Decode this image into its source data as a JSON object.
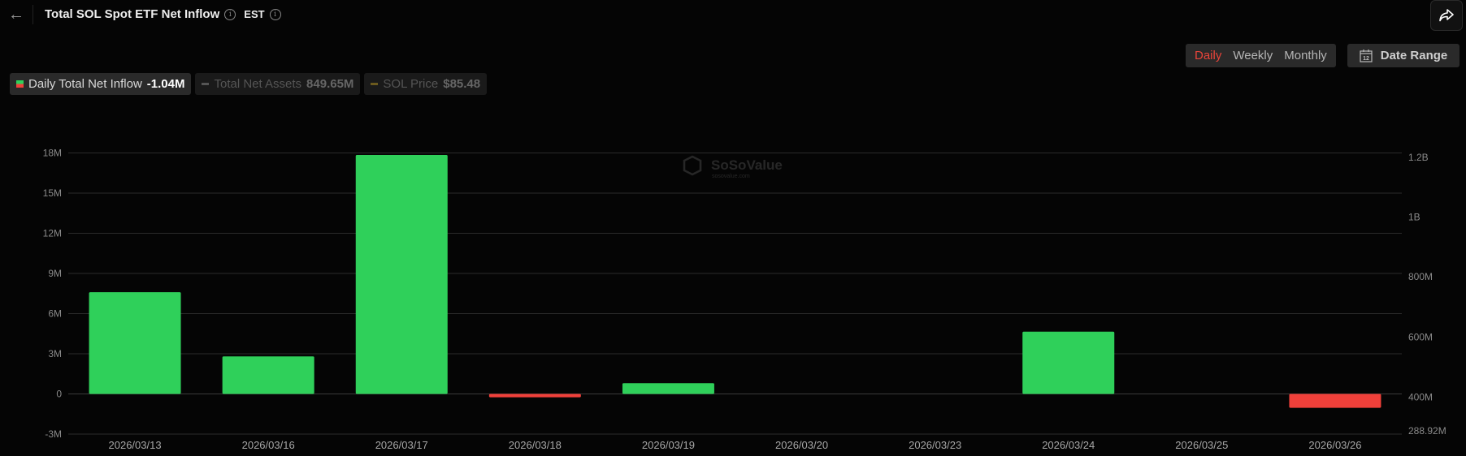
{
  "header": {
    "title": "Total SOL Spot ETF Net Inflow",
    "timezone": "EST",
    "back_icon": "arrow-left-icon",
    "share_icon": "share-icon"
  },
  "controls": {
    "periods": [
      "Daily",
      "Weekly",
      "Monthly"
    ],
    "active_period": "Daily",
    "date_range_label": "Date Range",
    "date_range_icon_text": "12"
  },
  "legend": [
    {
      "label": "Daily Total Net Inflow",
      "value": "-1.04M",
      "active": true
    },
    {
      "label": "Total Net Assets",
      "value": "849.65M",
      "active": false
    },
    {
      "label": "SOL Price",
      "value": "$85.48",
      "active": false
    }
  ],
  "colors": {
    "positive": "#2fd05a",
    "negative": "#f0403a",
    "accent": "#e8443a",
    "sol_price": "#6b5a1e",
    "net_assets": "#555555"
  },
  "watermark": {
    "brand": "SoSoValue",
    "site": "sosovalue.com"
  },
  "chart_data": {
    "type": "bar",
    "categories": [
      "2026/03/13",
      "2026/03/16",
      "2026/03/17",
      "2026/03/18",
      "2026/03/19",
      "2026/03/20",
      "2026/03/23",
      "2026/03/24",
      "2026/03/25",
      "2026/03/26"
    ],
    "series": [
      {
        "name": "Daily Total Net Inflow",
        "values": [
          7.6,
          2.8,
          17.85,
          -0.25,
          0.8,
          0,
          0,
          4.65,
          0,
          -1.04
        ]
      }
    ],
    "unit": "M",
    "ylim": [
      -3,
      18
    ],
    "yticks": [
      "-3M",
      "0",
      "3M",
      "6M",
      "9M",
      "12M",
      "15M",
      "18M"
    ],
    "y2ticks": [
      "288.92M",
      "400M",
      "600M",
      "800M",
      "1B",
      "1.2B"
    ],
    "grid": true,
    "legend_position": "top-left"
  }
}
